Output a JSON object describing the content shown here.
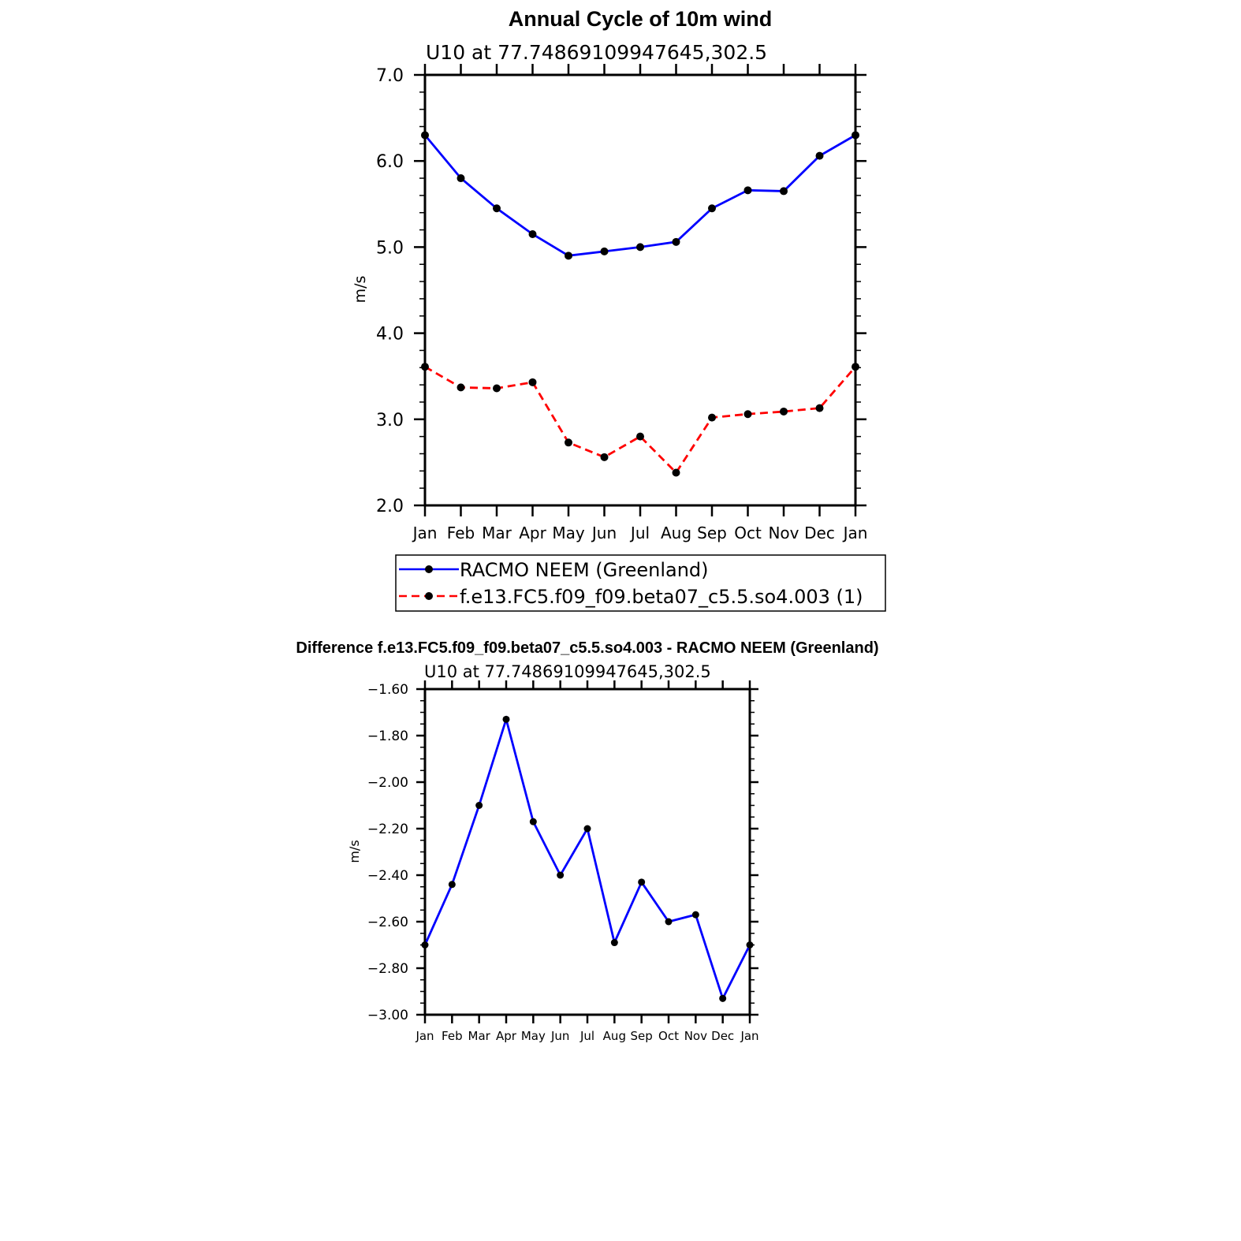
{
  "chart_data": [
    {
      "type": "line",
      "title": "Annual Cycle of 10m wind",
      "subtitle": "U10 at 77.74869109947645,302.5",
      "ylabel": "m/s",
      "xlabel": "",
      "categories": [
        "Jan",
        "Feb",
        "Mar",
        "Apr",
        "May",
        "Jun",
        "Jul",
        "Aug",
        "Sep",
        "Oct",
        "Nov",
        "Dec",
        "Jan"
      ],
      "ylim": [
        2.0,
        7.0
      ],
      "yticks": [
        "2.0",
        "3.0",
        "4.0",
        "5.0",
        "6.0",
        "7.0"
      ],
      "legend_position": "below",
      "series": [
        {
          "name": "RACMO NEEM (Greenland)",
          "color": "#0000ff",
          "dash": "solid",
          "values": [
            6.3,
            5.8,
            5.45,
            5.15,
            4.9,
            4.95,
            5.0,
            5.06,
            5.45,
            5.66,
            5.65,
            6.06,
            6.3
          ]
        },
        {
          "name": "f.e13.FC5.f09_f09.beta07_c5.5.so4.003 (1)",
          "color": "#ff0000",
          "dash": "dashed",
          "values": [
            3.61,
            3.37,
            3.36,
            3.43,
            2.73,
            2.56,
            2.8,
            2.38,
            3.02,
            3.06,
            3.09,
            3.13,
            3.61
          ]
        }
      ]
    },
    {
      "type": "line",
      "title": "Difference f.e13.FC5.f09_f09.beta07_c5.5.so4.003 - RACMO NEEM (Greenland)",
      "subtitle": "U10 at 77.74869109947645,302.5",
      "ylabel": "m/s",
      "xlabel": "",
      "categories": [
        "Jan",
        "Feb",
        "Mar",
        "Apr",
        "May",
        "Jun",
        "Jul",
        "Aug",
        "Sep",
        "Oct",
        "Nov",
        "Dec",
        "Jan"
      ],
      "ylim": [
        -3.0,
        -1.6
      ],
      "yticks": [
        "-3.00",
        "-2.80",
        "-2.60",
        "-2.40",
        "-2.20",
        "-2.00",
        "-1.80",
        "-1.60"
      ],
      "series": [
        {
          "color": "#0000ff",
          "dash": "solid",
          "values": [
            -2.7,
            -2.44,
            -2.1,
            -1.73,
            -2.17,
            -2.4,
            -2.2,
            -2.69,
            -2.43,
            -2.6,
            -2.57,
            -2.93,
            -2.7
          ]
        }
      ]
    }
  ]
}
